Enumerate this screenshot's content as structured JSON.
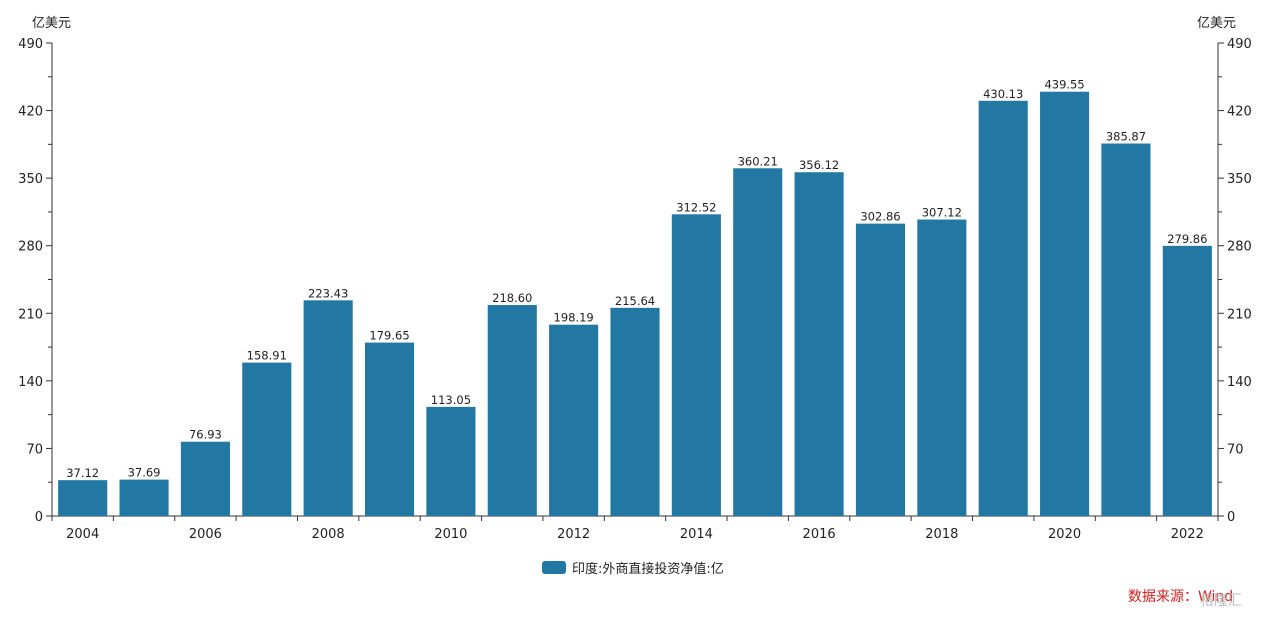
{
  "chart_data": {
    "type": "bar",
    "categories": [
      "2004",
      "2005",
      "2006",
      "2007",
      "2008",
      "2009",
      "2010",
      "2011",
      "2012",
      "2013",
      "2014",
      "2015",
      "2016",
      "2017",
      "2018",
      "2019",
      "2020",
      "2021",
      "2022"
    ],
    "x_tick_labels": [
      "2004",
      "2006",
      "2008",
      "2010",
      "2012",
      "2014",
      "2016",
      "2018",
      "2020",
      "2022"
    ],
    "series": [
      {
        "name": "印度:外商直接投资净值:亿",
        "values": [
          37.12,
          37.69,
          76.93,
          158.91,
          223.43,
          179.65,
          113.05,
          218.6,
          198.19,
          215.64,
          312.52,
          360.21,
          356.12,
          302.86,
          307.12,
          430.13,
          439.55,
          385.87,
          279.86
        ],
        "labels": [
          "37.12",
          "37.69",
          "76.93",
          "158.91",
          "223.43",
          "179.65",
          "113.05",
          "218.60",
          "198.19",
          "215.64",
          "312.52",
          "360.21",
          "356.12",
          "302.86",
          "307.12",
          "430.13",
          "439.55",
          "385.87",
          "279.86"
        ]
      }
    ],
    "ylim": [
      0,
      490
    ],
    "y_ticks": [
      0,
      70,
      140,
      210,
      280,
      350,
      420,
      490
    ],
    "ylabel_left": "亿美元",
    "ylabel_right": "亿美元",
    "legend_position": "bottom-center",
    "grid": false,
    "bar_color": "#2277a3"
  },
  "source_text": "数据来源：Wind",
  "watermark_text": "格隆汇"
}
